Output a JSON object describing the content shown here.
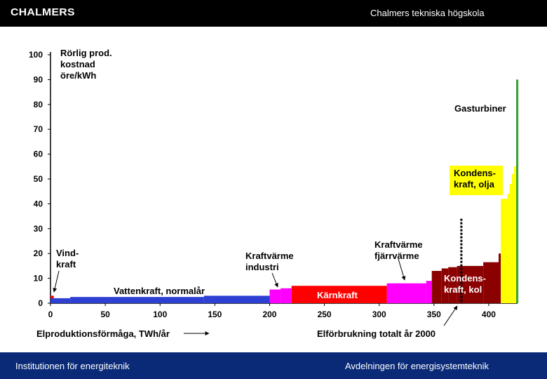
{
  "header": {
    "logo": "CHALMERS",
    "title": "Chalmers tekniska högskola"
  },
  "footer": {
    "left": "Institutionen för energiteknik",
    "right": "Avdelningen för energisystemteknik"
  },
  "colors": {
    "topbar": "#000000",
    "bottombar": "#0a2a78",
    "vind": "#ff0000",
    "vattenkraft": "#2e3fd4",
    "kraftvarme_industri": "#ff00ff",
    "karnkraft": "#ff0000",
    "kraftvarme_fjarrvarme": "#ff00ff",
    "kondens_kol": "#8b0000",
    "kondens_olja": "#ffff00",
    "gasturbiner": "#3aa23a"
  },
  "chart_data": {
    "type": "bar",
    "subtype": "merit-order step chart",
    "title": "",
    "ylabel": [
      "Rörlig prod.",
      "kostnad",
      "öre/kWh"
    ],
    "xlabel": "Elproduktionsförmåga, TWh/år",
    "demand_label": "Elförbrukning totalt år 2000",
    "demand_x": 375,
    "xlim": [
      0,
      425
    ],
    "ylim": [
      0,
      100
    ],
    "x_ticks": [
      0,
      50,
      100,
      150,
      200,
      250,
      300,
      350,
      400
    ],
    "y_ticks": [
      0,
      10,
      20,
      30,
      40,
      50,
      60,
      70,
      80,
      90,
      100
    ],
    "series": [
      {
        "name": "Vind-kraft",
        "label_lines": [
          "Vind-",
          "kraft"
        ],
        "color": "#ff0000",
        "steps": [
          [
            0,
            3,
            3
          ]
        ]
      },
      {
        "name": "Vattenkraft, normalår",
        "label_lines": [
          "Vattenkraft, normalår"
        ],
        "color": "#2e3fd4",
        "steps": [
          [
            0,
            18,
            2
          ],
          [
            18,
            140,
            2.5
          ],
          [
            140,
            200,
            3
          ]
        ]
      },
      {
        "name": "Kraftvärme industri",
        "label_lines": [
          "Kraftvärme",
          "industri"
        ],
        "color": "#ff00ff",
        "steps": [
          [
            200,
            210,
            5.5
          ],
          [
            210,
            220,
            6
          ]
        ]
      },
      {
        "name": "Kärnkraft",
        "label_lines": [
          "Kärnkraft"
        ],
        "color": "#ff0000",
        "steps": [
          [
            220,
            307,
            7
          ]
        ]
      },
      {
        "name": "Kraftvärme fjärrvärme",
        "label_lines": [
          "Kraftvärme",
          "fjärrvärme"
        ],
        "color": "#ff00ff",
        "steps": [
          [
            307,
            343,
            8
          ],
          [
            343,
            348,
            9
          ]
        ]
      },
      {
        "name": "Kondens-kraft, kol",
        "label_lines": [
          "Kondens-",
          "kraft, kol"
        ],
        "color": "#8b0000",
        "steps": [
          [
            348,
            357,
            13
          ],
          [
            357,
            363,
            14
          ],
          [
            363,
            371,
            14.5
          ],
          [
            371,
            395,
            15
          ],
          [
            395,
            409,
            16.5
          ],
          [
            409,
            411,
            20
          ]
        ]
      },
      {
        "name": "Kondens-kraft, olja",
        "label_lines": [
          "Kondens-",
          "kraft, olja"
        ],
        "color": "#ffff00",
        "steps": [
          [
            411,
            417,
            42
          ],
          [
            417,
            419,
            44
          ],
          [
            419,
            421,
            48
          ],
          [
            421,
            423,
            52
          ],
          [
            423,
            425,
            55
          ]
        ]
      },
      {
        "name": "Gasturbiner",
        "label_lines": [
          "Gasturbiner"
        ],
        "color": "#3aa23a",
        "steps": [
          [
            425,
            427,
            90
          ]
        ]
      }
    ]
  }
}
